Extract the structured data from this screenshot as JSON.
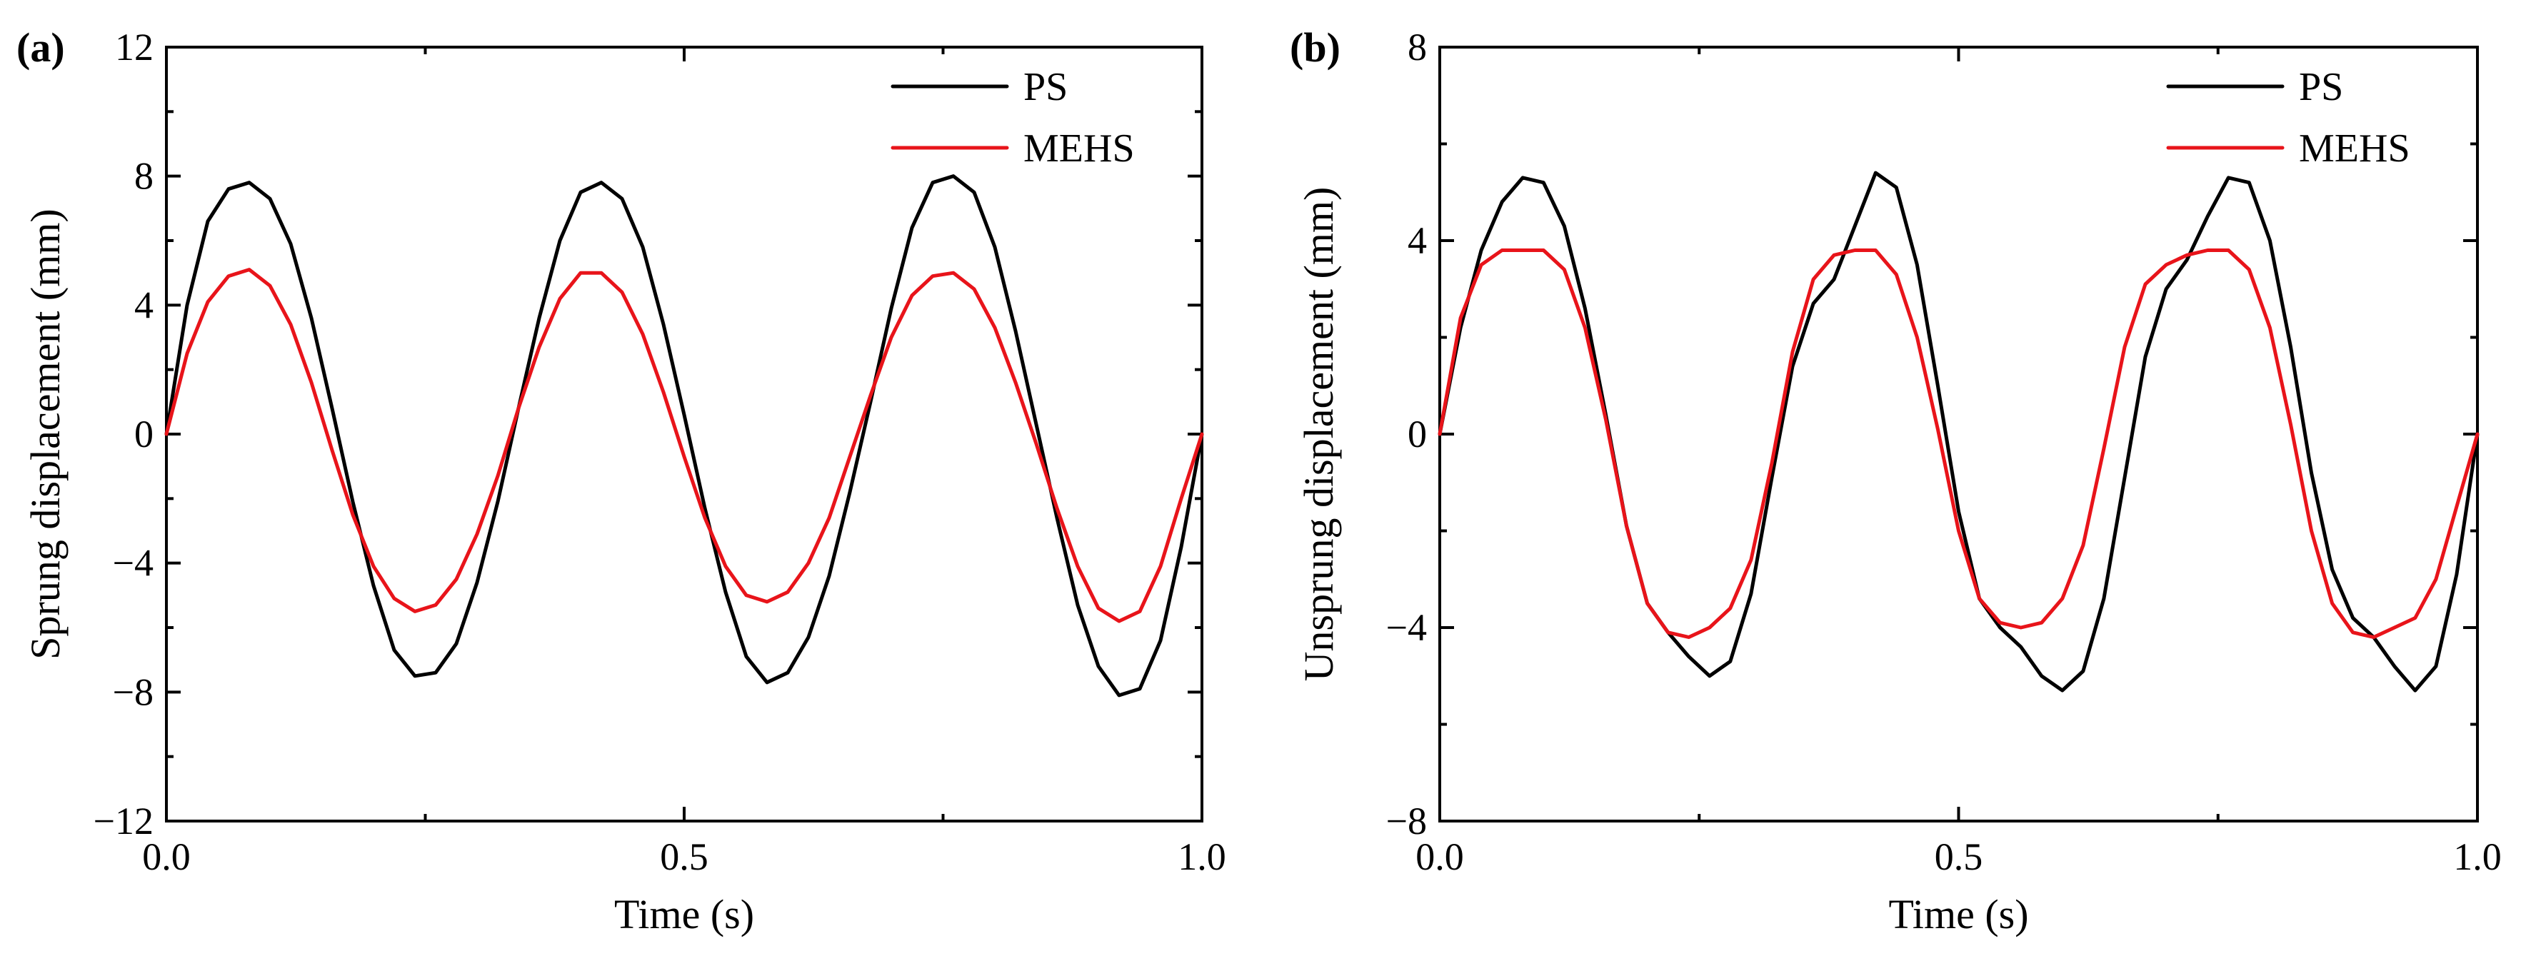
{
  "chart_data": [
    {
      "type": "line",
      "panel_label": "(a)",
      "xlabel": "Time (s)",
      "ylabel": "Sprung displacement (mm)",
      "xlim": [
        0,
        1
      ],
      "ylim": [
        -12,
        12
      ],
      "xticks": [
        0,
        0.5,
        1
      ],
      "xtick_labels": [
        "0.0",
        "0.5",
        "1.0"
      ],
      "yticks": [
        -12,
        -8,
        -4,
        0,
        4,
        8,
        12
      ],
      "ytick_labels": [
        "−12",
        "−8",
        "−4",
        "0",
        "4",
        "8",
        "12"
      ],
      "grid": false,
      "legend_position": "top-right",
      "series": [
        {
          "name": "PS",
          "color": "#000000",
          "x": [
            0,
            0.02,
            0.04,
            0.06,
            0.08,
            0.1,
            0.12,
            0.14,
            0.16,
            0.18,
            0.2,
            0.22,
            0.24,
            0.26,
            0.28,
            0.3,
            0.32,
            0.34,
            0.36,
            0.38,
            0.4,
            0.42,
            0.44,
            0.46,
            0.48,
            0.5,
            0.52,
            0.54,
            0.56,
            0.58,
            0.6,
            0.62,
            0.64,
            0.66,
            0.68,
            0.7,
            0.72,
            0.74,
            0.76,
            0.78,
            0.8,
            0.82,
            0.84,
            0.86,
            0.88,
            0.9,
            0.92,
            0.94,
            0.96,
            0.98,
            1.0
          ],
          "y": [
            0,
            4.0,
            6.6,
            7.6,
            7.8,
            7.3,
            5.9,
            3.6,
            0.8,
            -2.1,
            -4.7,
            -6.7,
            -7.5,
            -7.4,
            -6.5,
            -4.6,
            -2.1,
            0.8,
            3.6,
            6.0,
            7.5,
            7.8,
            7.3,
            5.8,
            3.4,
            0.6,
            -2.3,
            -4.9,
            -6.9,
            -7.7,
            -7.4,
            -6.3,
            -4.4,
            -1.8,
            1.0,
            3.9,
            6.4,
            7.8,
            8.0,
            7.5,
            5.8,
            3.2,
            0.3,
            -2.6,
            -5.3,
            -7.2,
            -8.1,
            -7.9,
            -6.4,
            -3.5,
            0
          ]
        },
        {
          "name": "MEHS",
          "color": "#e8141a",
          "x": [
            0,
            0.02,
            0.04,
            0.06,
            0.08,
            0.1,
            0.12,
            0.14,
            0.16,
            0.18,
            0.2,
            0.22,
            0.24,
            0.26,
            0.28,
            0.3,
            0.32,
            0.34,
            0.36,
            0.38,
            0.4,
            0.42,
            0.44,
            0.46,
            0.48,
            0.5,
            0.52,
            0.54,
            0.56,
            0.58,
            0.6,
            0.62,
            0.64,
            0.66,
            0.68,
            0.7,
            0.72,
            0.74,
            0.76,
            0.78,
            0.8,
            0.82,
            0.84,
            0.86,
            0.88,
            0.9,
            0.92,
            0.94,
            0.96,
            0.98,
            1.0
          ],
          "y": [
            0,
            2.5,
            4.1,
            4.9,
            5.1,
            4.6,
            3.4,
            1.6,
            -0.5,
            -2.5,
            -4.1,
            -5.1,
            -5.5,
            -5.3,
            -4.5,
            -3.1,
            -1.3,
            0.8,
            2.7,
            4.2,
            5.0,
            5.0,
            4.4,
            3.1,
            1.3,
            -0.7,
            -2.6,
            -4.1,
            -5.0,
            -5.2,
            -4.9,
            -4.0,
            -2.6,
            -0.7,
            1.2,
            3.0,
            4.3,
            4.9,
            5.0,
            4.5,
            3.3,
            1.6,
            -0.3,
            -2.3,
            -4.1,
            -5.4,
            -5.8,
            -5.5,
            -4.1,
            -2.0,
            0
          ]
        }
      ]
    },
    {
      "type": "line",
      "panel_label": "(b)",
      "xlabel": "Time (s)",
      "ylabel": "Unsprung displacement (mm)",
      "xlim": [
        0,
        1
      ],
      "ylim": [
        -8,
        8
      ],
      "xticks": [
        0,
        0.5,
        1
      ],
      "xtick_labels": [
        "0.0",
        "0.5",
        "1.0"
      ],
      "yticks": [
        -8,
        -4,
        0,
        4,
        8
      ],
      "ytick_labels": [
        "−8",
        "−4",
        "0",
        "4",
        "8"
      ],
      "grid": false,
      "legend_position": "top-right",
      "series": [
        {
          "name": "PS",
          "color": "#000000",
          "x": [
            0,
            0.02,
            0.04,
            0.06,
            0.08,
            0.1,
            0.12,
            0.14,
            0.16,
            0.18,
            0.2,
            0.22,
            0.24,
            0.26,
            0.28,
            0.3,
            0.32,
            0.34,
            0.36,
            0.38,
            0.4,
            0.42,
            0.44,
            0.46,
            0.48,
            0.5,
            0.52,
            0.54,
            0.56,
            0.58,
            0.6,
            0.62,
            0.64,
            0.66,
            0.68,
            0.7,
            0.72,
            0.74,
            0.76,
            0.78,
            0.8,
            0.82,
            0.84,
            0.86,
            0.88,
            0.9,
            0.92,
            0.94,
            0.96,
            0.98,
            1.0
          ],
          "y": [
            0,
            2.2,
            3.8,
            4.8,
            5.3,
            5.2,
            4.3,
            2.6,
            0.4,
            -1.9,
            -3.5,
            -4.1,
            -4.6,
            -5.0,
            -4.7,
            -3.3,
            -0.9,
            1.4,
            2.7,
            3.2,
            4.3,
            5.4,
            5.1,
            3.5,
            1.0,
            -1.6,
            -3.4,
            -4.0,
            -4.4,
            -5.0,
            -5.3,
            -4.9,
            -3.4,
            -0.9,
            1.6,
            3.0,
            3.6,
            4.5,
            5.3,
            5.2,
            4.0,
            1.8,
            -0.8,
            -2.8,
            -3.8,
            -4.2,
            -4.8,
            -5.3,
            -4.8,
            -2.9,
            0
          ]
        },
        {
          "name": "MEHS",
          "color": "#e8141a",
          "x": [
            0,
            0.02,
            0.04,
            0.06,
            0.08,
            0.1,
            0.12,
            0.14,
            0.16,
            0.18,
            0.2,
            0.22,
            0.24,
            0.26,
            0.28,
            0.3,
            0.32,
            0.34,
            0.36,
            0.38,
            0.4,
            0.42,
            0.44,
            0.46,
            0.48,
            0.5,
            0.52,
            0.54,
            0.56,
            0.58,
            0.6,
            0.62,
            0.64,
            0.66,
            0.68,
            0.7,
            0.72,
            0.74,
            0.76,
            0.78,
            0.8,
            0.82,
            0.84,
            0.86,
            0.88,
            0.9,
            0.92,
            0.94,
            0.96,
            0.98,
            1.0
          ],
          "y": [
            0,
            2.4,
            3.5,
            3.8,
            3.8,
            3.8,
            3.4,
            2.2,
            0.3,
            -1.9,
            -3.5,
            -4.1,
            -4.2,
            -4.0,
            -3.6,
            -2.6,
            -0.6,
            1.7,
            3.2,
            3.7,
            3.8,
            3.8,
            3.3,
            2.0,
            0.1,
            -2.0,
            -3.4,
            -3.9,
            -4.0,
            -3.9,
            -3.4,
            -2.3,
            -0.3,
            1.8,
            3.1,
            3.5,
            3.7,
            3.8,
            3.8,
            3.4,
            2.2,
            0.2,
            -2.0,
            -3.5,
            -4.1,
            -4.2,
            -4.0,
            -3.8,
            -3.0,
            -1.5,
            0
          ]
        }
      ]
    }
  ]
}
